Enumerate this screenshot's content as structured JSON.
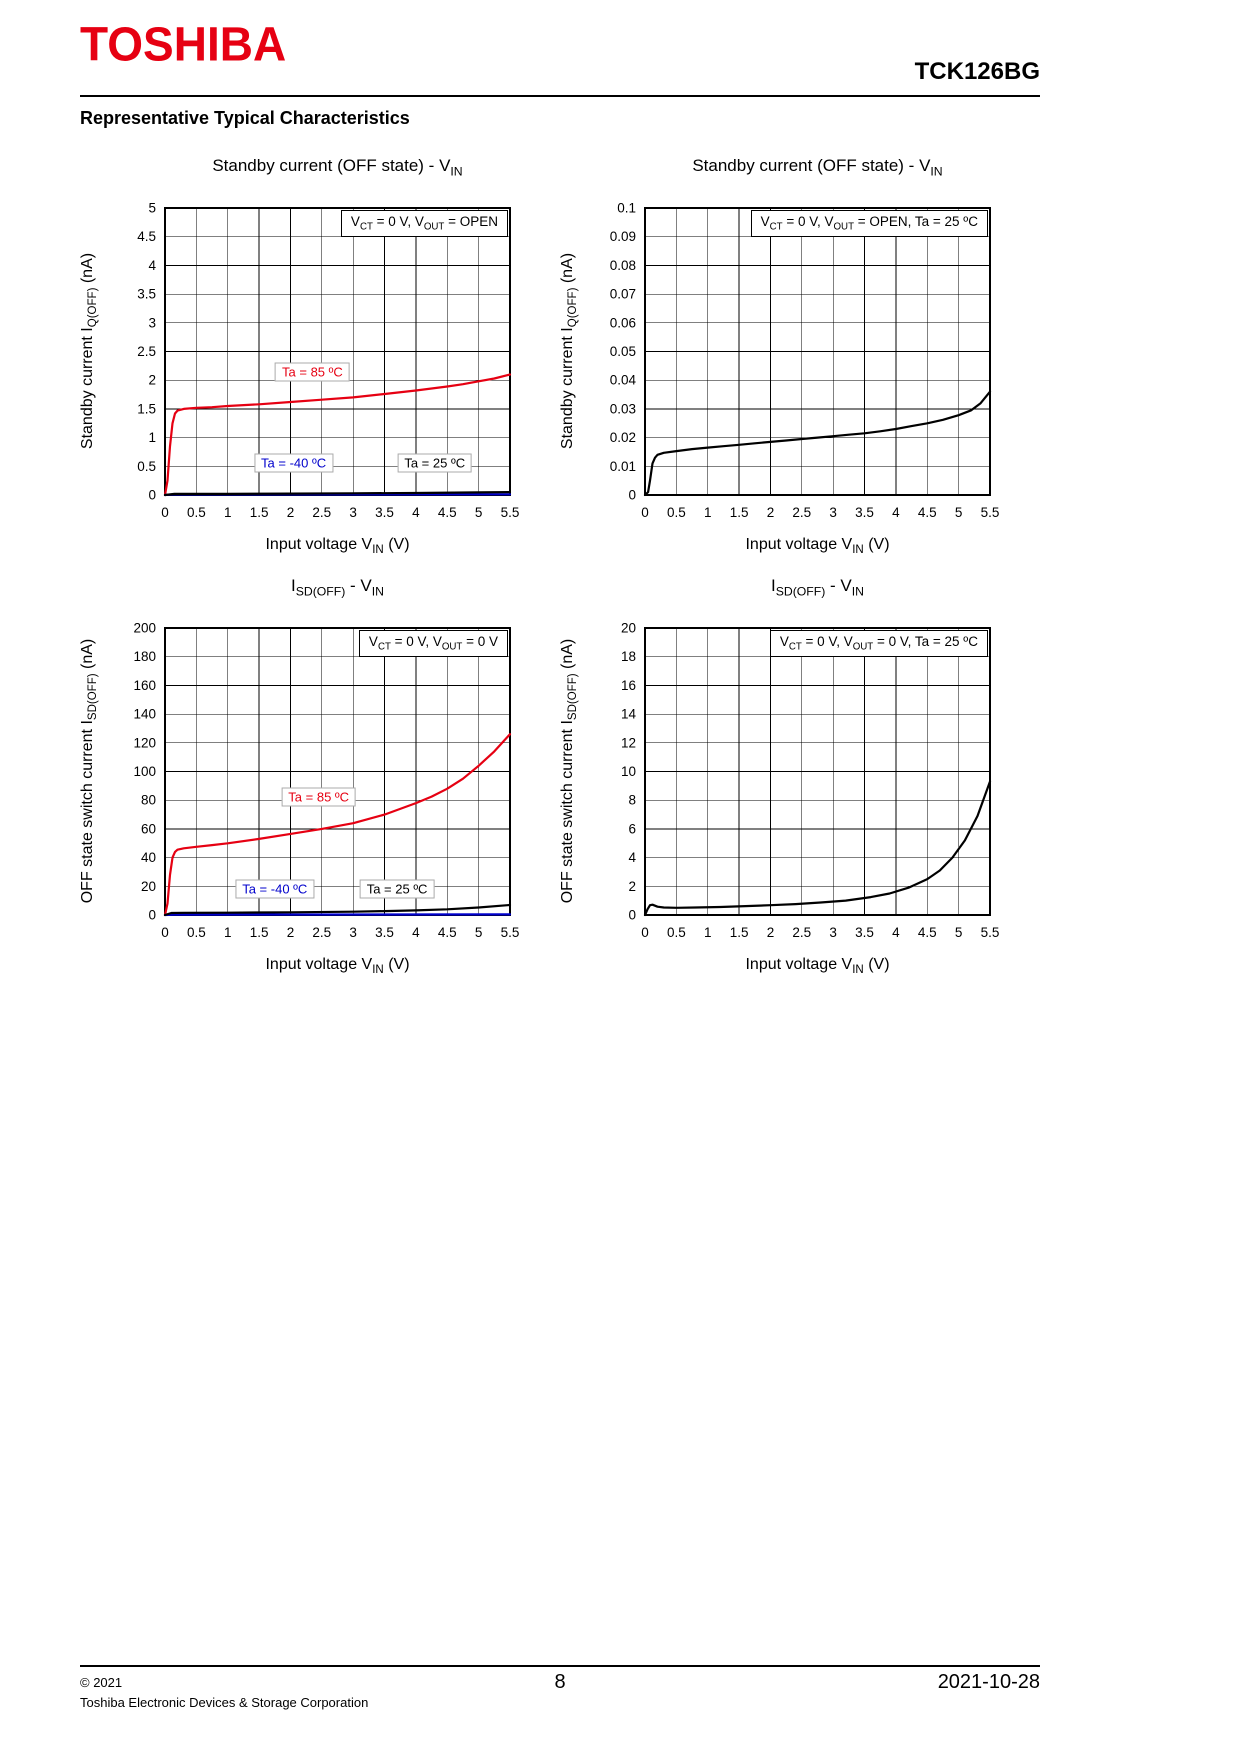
{
  "page": {
    "brand": "TOSHIBA",
    "brand_color": "#e60012",
    "part_number": "TCK126BG",
    "section_title": "Representative Typical Characteristics",
    "footer": {
      "copyright": "© 2021",
      "company": "Toshiba Electronic Devices & Storage Corporation",
      "page_number": "8",
      "date": "2021-10-28"
    }
  },
  "chart_data": [
    {
      "type": "line",
      "title": {
        "t1": "Standby current (OFF state) - V",
        "s1": "IN",
        "t2": "",
        "s2": ""
      },
      "condition": {
        "a1": "V",
        "as1": "CT",
        "a2": " = 0 V, V",
        "as2": "OUT",
        "a3": " = OPEN"
      },
      "xlabel": {
        "t1": "Input voltage V",
        "s1": "IN",
        "t2": " (V)"
      },
      "ylabel": {
        "t1": "Standby current I",
        "s1": "Q(OFF)",
        "t2": " (nA)"
      },
      "xlim": [
        0,
        5.5
      ],
      "ylim": [
        0,
        5
      ],
      "xticks": [
        "0",
        "0.5",
        "1",
        "1.5",
        "2",
        "2.5",
        "3",
        "3.5",
        "4",
        "4.5",
        "5",
        "5.5"
      ],
      "yticks": [
        "0",
        "0.5",
        "1",
        "1.5",
        "2",
        "2.5",
        "3",
        "3.5",
        "4",
        "4.5",
        "5"
      ],
      "grid": true,
      "series": [
        {
          "name": "Ta = 85 ºC",
          "color": "#e60012",
          "points": [
            [
              0,
              0
            ],
            [
              0.04,
              0.25
            ],
            [
              0.08,
              0.85
            ],
            [
              0.12,
              1.25
            ],
            [
              0.16,
              1.42
            ],
            [
              0.2,
              1.47
            ],
            [
              0.3,
              1.5
            ],
            [
              0.5,
              1.52
            ],
            [
              0.75,
              1.53
            ],
            [
              1,
              1.55
            ],
            [
              1.5,
              1.58
            ],
            [
              2,
              1.62
            ],
            [
              2.5,
              1.66
            ],
            [
              3,
              1.7
            ],
            [
              3.5,
              1.76
            ],
            [
              4,
              1.82
            ],
            [
              4.5,
              1.89
            ],
            [
              4.75,
              1.93
            ],
            [
              5,
              1.98
            ],
            [
              5.25,
              2.03
            ],
            [
              5.5,
              2.1
            ]
          ]
        },
        {
          "name": "Ta = -40 ºC",
          "color": "#0000cc",
          "points": [
            [
              0,
              0
            ],
            [
              0.15,
              0.01
            ],
            [
              5.5,
              0.012
            ]
          ]
        },
        {
          "name": "Ta = 25 ºC",
          "color": "#000000",
          "points": [
            [
              0,
              0
            ],
            [
              0.15,
              0.02
            ],
            [
              1,
              0.02
            ],
            [
              2,
              0.025
            ],
            [
              3,
              0.03
            ],
            [
              4,
              0.035
            ],
            [
              5,
              0.045
            ],
            [
              5.5,
              0.05
            ]
          ]
        }
      ],
      "labels": [
        {
          "text": "Ta = 85 ºC",
          "color": "#e60012",
          "x": 2.35,
          "y": 2.15
        },
        {
          "text": "Ta = -40 ºC",
          "color": "#0000cc",
          "x": 2.05,
          "y": 0.55
        },
        {
          "text": "Ta = 25 ºC",
          "color": "#000000",
          "x": 4.3,
          "y": 0.55
        }
      ]
    },
    {
      "type": "line",
      "title": {
        "t1": "Standby current (OFF state) - V",
        "s1": "IN",
        "t2": "",
        "s2": ""
      },
      "condition": {
        "a1": "V",
        "as1": "CT",
        "a2": " = 0 V, V",
        "as2": "OUT",
        "a3": " = OPEN, Ta = 25 ºC"
      },
      "xlabel": {
        "t1": "Input voltage V",
        "s1": "IN",
        "t2": " (V)"
      },
      "ylabel": {
        "t1": "Standby current I",
        "s1": "Q(OFF)",
        "t2": " (nA)"
      },
      "xlim": [
        0,
        5.5
      ],
      "ylim": [
        0,
        0.1
      ],
      "xticks": [
        "0",
        "0.5",
        "1",
        "1.5",
        "2",
        "2.5",
        "3",
        "3.5",
        "4",
        "4.5",
        "5",
        "5.5"
      ],
      "yticks": [
        "0",
        "0.01",
        "0.02",
        "0.03",
        "0.04",
        "0.05",
        "0.06",
        "0.07",
        "0.08",
        "0.09",
        "0.1"
      ],
      "grid": true,
      "series": [
        {
          "name": "Ta = 25 ºC",
          "color": "#000000",
          "points": [
            [
              0,
              0
            ],
            [
              0.05,
              0.001
            ],
            [
              0.08,
              0.005
            ],
            [
              0.12,
              0.011
            ],
            [
              0.16,
              0.013
            ],
            [
              0.2,
              0.014
            ],
            [
              0.3,
              0.0147
            ],
            [
              0.5,
              0.0153
            ],
            [
              0.75,
              0.016
            ],
            [
              1,
              0.0165
            ],
            [
              1.25,
              0.017
            ],
            [
              1.5,
              0.0175
            ],
            [
              1.75,
              0.018
            ],
            [
              2,
              0.0185
            ],
            [
              2.25,
              0.019
            ],
            [
              2.5,
              0.0195
            ],
            [
              2.75,
              0.02
            ],
            [
              3,
              0.0205
            ],
            [
              3.25,
              0.021
            ],
            [
              3.5,
              0.0215
            ],
            [
              3.75,
              0.0222
            ],
            [
              4,
              0.023
            ],
            [
              4.25,
              0.024
            ],
            [
              4.5,
              0.025
            ],
            [
              4.75,
              0.0262
            ],
            [
              5,
              0.0278
            ],
            [
              5.2,
              0.0295
            ],
            [
              5.35,
              0.032
            ],
            [
              5.5,
              0.036
            ]
          ]
        }
      ],
      "labels": []
    },
    {
      "type": "line",
      "title": {
        "t1": "I",
        "s1": "SD(OFF)",
        "t2": " - V",
        "s2": "IN"
      },
      "condition": {
        "a1": "V",
        "as1": "CT",
        "a2": " = 0 V, V",
        "as2": "OUT",
        "a3": " = 0 V"
      },
      "xlabel": {
        "t1": "Input voltage V",
        "s1": "IN",
        "t2": " (V)"
      },
      "ylabel": {
        "t1": "OFF state switch current I",
        "s1": "SD(OFF)",
        "t2": " (nA)"
      },
      "xlim": [
        0,
        5.5
      ],
      "ylim": [
        0,
        200
      ],
      "xticks": [
        "0",
        "0.5",
        "1",
        "1.5",
        "2",
        "2.5",
        "3",
        "3.5",
        "4",
        "4.5",
        "5",
        "5.5"
      ],
      "yticks": [
        "0",
        "20",
        "40",
        "60",
        "80",
        "100",
        "120",
        "140",
        "160",
        "180",
        "200"
      ],
      "grid": true,
      "series": [
        {
          "name": "Ta = 85 ºC",
          "color": "#e60012",
          "points": [
            [
              0,
              0
            ],
            [
              0.04,
              8
            ],
            [
              0.08,
              28
            ],
            [
              0.12,
              40
            ],
            [
              0.16,
              44
            ],
            [
              0.2,
              45.5
            ],
            [
              0.3,
              46.5
            ],
            [
              0.5,
              47.5
            ],
            [
              0.75,
              48.7
            ],
            [
              1,
              50
            ],
            [
              1.5,
              53
            ],
            [
              2,
              56.5
            ],
            [
              2.5,
              60
            ],
            [
              3,
              64
            ],
            [
              3.5,
              70
            ],
            [
              4,
              78
            ],
            [
              4.25,
              82.5
            ],
            [
              4.5,
              88
            ],
            [
              4.75,
              95
            ],
            [
              5,
              104
            ],
            [
              5.25,
              114
            ],
            [
              5.5,
              126
            ]
          ]
        },
        {
          "name": "Ta = -40 ºC",
          "color": "#0000cc",
          "points": [
            [
              0,
              0
            ],
            [
              0.15,
              0.3
            ],
            [
              5.5,
              0.4
            ]
          ]
        },
        {
          "name": "Ta = 25 ºC",
          "color": "#000000",
          "points": [
            [
              0,
              0
            ],
            [
              0.1,
              1.4
            ],
            [
              0.3,
              1.5
            ],
            [
              1,
              1.6
            ],
            [
              2,
              1.9
            ],
            [
              3,
              2.3
            ],
            [
              3.5,
              2.7
            ],
            [
              4,
              3.2
            ],
            [
              4.5,
              4
            ],
            [
              5,
              5.2
            ],
            [
              5.5,
              7
            ]
          ]
        }
      ],
      "labels": [
        {
          "text": "Ta = 85 ºC",
          "color": "#e60012",
          "x": 2.45,
          "y": 82
        },
        {
          "text": "Ta = -40 ºC",
          "color": "#0000cc",
          "x": 1.75,
          "y": 18
        },
        {
          "text": "Ta = 25 ºC",
          "color": "#000000",
          "x": 3.7,
          "y": 18
        }
      ]
    },
    {
      "type": "line",
      "title": {
        "t1": "I",
        "s1": "SD(OFF)",
        "t2": " - V",
        "s2": "IN"
      },
      "condition": {
        "a1": "V",
        "as1": "CT",
        "a2": " = 0 V, V",
        "as2": "OUT",
        "a3": " = 0 V, Ta = 25 ºC"
      },
      "xlabel": {
        "t1": "Input voltage V",
        "s1": "IN",
        "t2": " (V)"
      },
      "ylabel": {
        "t1": "OFF state switch current I",
        "s1": "SD(OFF)",
        "t2": " (nA)"
      },
      "xlim": [
        0,
        5.5
      ],
      "ylim": [
        0,
        20
      ],
      "xticks": [
        "0",
        "0.5",
        "1",
        "1.5",
        "2",
        "2.5",
        "3",
        "3.5",
        "4",
        "4.5",
        "5",
        "5.5"
      ],
      "yticks": [
        "0",
        "2",
        "4",
        "6",
        "8",
        "10",
        "12",
        "14",
        "16",
        "18",
        "20"
      ],
      "grid": true,
      "series": [
        {
          "name": "Ta = 25 ºC",
          "color": "#000000",
          "points": [
            [
              0,
              0
            ],
            [
              0.04,
              0.4
            ],
            [
              0.08,
              0.68
            ],
            [
              0.12,
              0.72
            ],
            [
              0.2,
              0.58
            ],
            [
              0.3,
              0.52
            ],
            [
              0.5,
              0.5
            ],
            [
              0.8,
              0.52
            ],
            [
              1.2,
              0.56
            ],
            [
              1.6,
              0.62
            ],
            [
              2,
              0.68
            ],
            [
              2.4,
              0.76
            ],
            [
              2.8,
              0.87
            ],
            [
              3.2,
              1.0
            ],
            [
              3.6,
              1.25
            ],
            [
              3.9,
              1.5
            ],
            [
              4.2,
              1.9
            ],
            [
              4.5,
              2.5
            ],
            [
              4.7,
              3.1
            ],
            [
              4.9,
              4.0
            ],
            [
              5.1,
              5.2
            ],
            [
              5.3,
              6.9
            ],
            [
              5.5,
              9.3
            ]
          ]
        }
      ],
      "labels": []
    }
  ]
}
